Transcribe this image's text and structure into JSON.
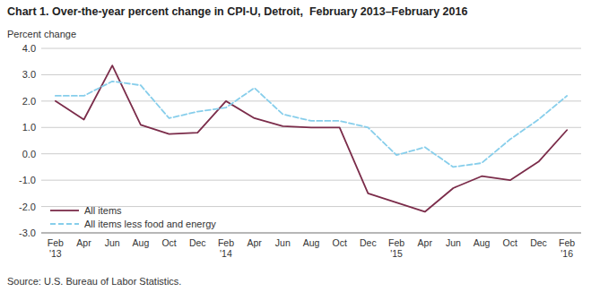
{
  "chart_data": {
    "type": "line",
    "title": "Chart 1. Over-the-year percent change in CPI-U, Detroit,  February 2013–February 2016",
    "ylabel": "Percent change",
    "source": "Source: U.S. Bureau of Labor Statistics.",
    "categories": [
      "Feb\n'13",
      "Apr",
      "Jun",
      "Aug",
      "Oct",
      "Dec",
      "Feb\n'14",
      "Apr",
      "Jun",
      "Aug",
      "Oct",
      "Dec",
      "Feb\n'15",
      "Apr",
      "Jun",
      "Aug",
      "Oct",
      "Dec",
      "Feb\n'16"
    ],
    "series": [
      {
        "name": "All items",
        "color": "#7B2C4A",
        "line_style": "solid",
        "values": [
          2.0,
          1.3,
          3.35,
          1.1,
          0.75,
          0.8,
          2.0,
          1.35,
          1.05,
          1.0,
          1.0,
          -1.5,
          -1.85,
          -2.2,
          -1.3,
          -0.85,
          -1.0,
          -0.3,
          0.9
        ]
      },
      {
        "name": "All items less food and energy",
        "color": "#87CEEB",
        "line_style": "dashed",
        "values": [
          2.2,
          2.2,
          2.75,
          2.6,
          1.35,
          1.6,
          1.75,
          2.5,
          1.5,
          1.25,
          1.25,
          1.0,
          -0.05,
          0.25,
          -0.5,
          -0.35,
          0.55,
          1.3,
          2.2
        ]
      }
    ],
    "ylim": [
      -3.0,
      4.0
    ],
    "yticks": [
      {
        "value": -3.0,
        "label": "-3.0"
      },
      {
        "value": -2.0,
        "label": "-2.0"
      },
      {
        "value": -1.0,
        "label": "-1.0"
      },
      {
        "value": 0.0,
        "label": "0.0"
      },
      {
        "value": 1.0,
        "label": "1.0"
      },
      {
        "value": 2.0,
        "label": "2.0"
      },
      {
        "value": 3.0,
        "label": "3.0"
      },
      {
        "value": 4.0,
        "label": "4.0"
      }
    ],
    "grid": true,
    "legend": "lower left"
  }
}
